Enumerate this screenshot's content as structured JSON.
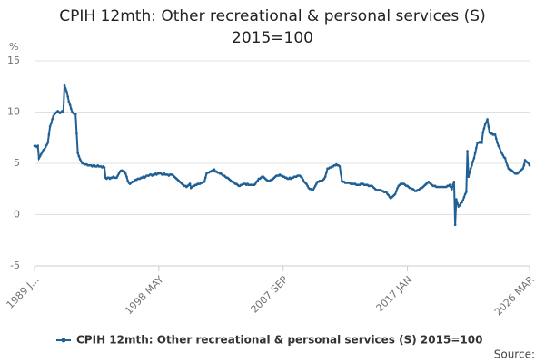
{
  "chart_data": {
    "type": "line",
    "title": "CPIH 12mth: Other recreational & personal services (S) 2015=100",
    "y_label": "%",
    "source": "Source:",
    "grid": true,
    "legend": "bottom",
    "ylim": [
      -5,
      15
    ],
    "yticks": [
      -5,
      0,
      5,
      10,
      15
    ],
    "categories": [
      "1989 J...",
      null,
      null,
      null,
      null,
      null,
      null,
      null,
      null,
      null,
      null,
      null,
      null,
      null,
      null,
      null,
      null,
      null,
      null,
      null,
      null,
      null,
      null,
      null,
      null,
      null,
      null,
      null,
      null,
      null,
      null,
      null,
      null,
      null,
      null,
      null,
      null,
      null,
      null,
      null,
      null,
      null,
      null,
      null,
      null,
      null,
      null,
      null,
      null,
      null,
      null,
      null,
      null,
      null,
      null,
      null,
      null,
      null,
      null,
      null,
      null,
      null,
      null,
      null,
      null,
      null,
      null,
      null,
      null,
      null,
      null,
      null,
      null,
      null,
      null,
      null,
      null,
      null,
      null,
      null,
      null,
      null,
      null,
      null,
      null,
      null,
      null,
      null,
      null,
      null,
      null,
      null,
      null,
      null,
      null,
      null,
      null,
      null,
      null,
      null,
      null,
      null,
      null,
      null,
      null,
      null,
      null,
      null,
      null,
      null,
      null,
      null,
      "1998 MAY",
      null,
      null,
      null,
      null,
      null,
      null,
      null,
      null,
      null,
      null,
      null,
      null,
      null,
      null,
      null,
      null,
      null,
      null,
      null,
      null,
      null,
      null,
      null,
      null,
      null,
      null,
      null,
      null,
      null,
      null,
      null,
      null,
      null,
      null,
      null,
      null,
      null,
      null,
      null,
      null,
      null,
      null,
      null,
      null,
      null,
      null,
      null,
      null,
      null,
      null,
      null,
      null,
      null,
      null,
      null,
      null,
      null,
      null,
      null,
      null,
      null,
      null,
      null,
      null,
      null,
      null,
      null,
      null,
      null,
      null,
      null,
      null,
      null,
      null,
      null,
      null,
      null,
      null,
      null,
      null,
      null,
      null,
      null,
      null,
      null,
      null,
      null,
      null,
      null,
      null,
      null,
      null,
      null,
      null,
      null,
      null,
      null,
      null,
      null,
      null,
      null,
      null,
      null,
      null,
      null,
      null,
      null,
      null,
      null,
      null,
      null,
      "2007 SEP",
      null,
      null,
      null,
      null,
      null,
      null,
      null,
      null,
      null,
      null,
      null,
      null,
      null,
      null,
      null,
      null,
      null,
      null,
      null,
      null,
      null,
      null,
      null,
      null,
      null,
      null,
      null,
      null,
      null,
      null,
      null,
      null,
      null,
      null,
      null,
      null,
      null,
      null,
      null,
      null,
      null,
      null,
      null,
      null,
      null,
      null,
      null,
      null,
      null,
      null,
      null,
      null,
      null,
      null,
      null,
      null,
      null,
      null,
      null,
      null,
      null,
      null,
      null,
      null,
      null,
      null,
      null,
      null,
      null,
      null,
      null,
      null,
      null,
      null,
      null,
      null,
      null,
      null,
      null,
      null,
      null,
      null,
      null,
      null,
      null,
      null,
      null,
      null,
      null,
      null,
      null,
      null,
      null,
      null,
      null,
      null,
      null,
      null,
      null,
      null,
      null,
      null,
      null,
      null,
      null,
      null,
      null,
      null,
      null,
      null,
      null,
      "2017 JAN",
      null,
      null,
      null,
      null,
      null,
      null,
      null,
      null,
      null,
      null,
      null,
      null,
      null,
      null,
      null,
      null,
      null,
      null,
      null,
      null,
      null,
      null,
      null,
      null,
      null,
      null,
      null,
      null,
      null,
      null,
      null,
      null,
      null,
      null,
      null,
      null,
      null,
      null,
      null,
      null,
      null,
      null,
      null,
      null,
      null,
      null,
      null,
      null,
      null,
      null,
      null,
      null,
      null,
      null,
      null,
      null,
      null,
      null,
      null,
      null,
      null,
      null,
      null,
      null,
      null,
      null,
      null,
      null,
      null,
      null,
      null,
      null,
      null,
      null,
      null,
      null,
      null,
      null,
      null,
      null,
      null,
      null,
      null,
      null,
      null,
      null,
      null,
      null,
      null,
      null,
      null,
      null,
      null,
      null,
      null,
      null,
      null,
      null,
      null,
      null,
      null,
      null,
      null,
      null,
      null,
      null,
      null,
      null,
      null,
      "2026 MAR"
    ],
    "series": [
      {
        "name": "CPIH 12mth: Other recreational & personal services (S) 2015=100",
        "color": "#206095",
        "values": [
          6.7,
          6.7,
          6.6,
          6.7,
          5.5,
          5.7,
          5.9,
          6.1,
          6.3,
          6.4,
          6.6,
          6.8,
          7.0,
          7.8,
          8.6,
          8.9,
          9.3,
          9.6,
          9.8,
          9.9,
          10.0,
          10.1,
          10.0,
          9.9,
          10.0,
          10.1,
          10.0,
          12.6,
          12.3,
          12.0,
          11.5,
          11.0,
          10.7,
          10.3,
          10.0,
          9.9,
          9.8,
          9.8,
          7.9,
          6.0,
          5.7,
          5.4,
          5.2,
          5.0,
          5.0,
          4.9,
          4.9,
          4.9,
          4.8,
          4.8,
          4.8,
          4.8,
          4.7,
          4.8,
          4.8,
          4.7,
          4.7,
          4.8,
          4.7,
          4.7,
          4.7,
          4.6,
          4.7,
          4.6,
          3.6,
          3.5,
          3.6,
          3.6,
          3.5,
          3.6,
          3.6,
          3.7,
          3.6,
          3.6,
          3.6,
          3.8,
          4.0,
          4.2,
          4.3,
          4.3,
          4.2,
          4.2,
          4.0,
          3.7,
          3.3,
          3.1,
          3.0,
          3.1,
          3.2,
          3.2,
          3.3,
          3.4,
          3.4,
          3.5,
          3.5,
          3.5,
          3.6,
          3.6,
          3.7,
          3.6,
          3.7,
          3.8,
          3.8,
          3.8,
          3.9,
          3.9,
          3.8,
          3.9,
          3.9,
          4.0,
          3.9,
          4.0,
          4.0,
          4.1,
          4.0,
          3.9,
          3.9,
          4.0,
          3.9,
          3.9,
          3.9,
          3.8,
          3.9,
          3.9,
          3.9,
          3.8,
          3.7,
          3.6,
          3.5,
          3.4,
          3.3,
          3.2,
          3.1,
          3.0,
          2.9,
          2.8,
          2.8,
          2.7,
          2.8,
          2.9,
          3.0,
          2.6,
          2.7,
          2.8,
          2.8,
          2.9,
          2.9,
          3.0,
          3.0,
          3.0,
          3.1,
          3.1,
          3.2,
          3.2,
          3.6,
          4.0,
          4.1,
          4.1,
          4.2,
          4.2,
          4.3,
          4.3,
          4.4,
          4.2,
          4.2,
          4.1,
          4.1,
          4.0,
          4.0,
          3.9,
          3.8,
          3.8,
          3.7,
          3.6,
          3.6,
          3.5,
          3.4,
          3.3,
          3.2,
          3.2,
          3.1,
          3.0,
          3.0,
          2.9,
          2.8,
          2.8,
          2.9,
          2.9,
          3.0,
          3.0,
          3.0,
          2.9,
          3.0,
          2.9,
          2.9,
          2.9,
          2.9,
          2.9,
          2.9,
          3.0,
          3.2,
          3.3,
          3.5,
          3.5,
          3.6,
          3.7,
          3.7,
          3.6,
          3.5,
          3.4,
          3.3,
          3.3,
          3.3,
          3.4,
          3.4,
          3.5,
          3.6,
          3.7,
          3.8,
          3.8,
          3.8,
          3.9,
          3.8,
          3.8,
          3.7,
          3.7,
          3.6,
          3.6,
          3.5,
          3.5,
          3.6,
          3.5,
          3.6,
          3.6,
          3.7,
          3.7,
          3.7,
          3.8,
          3.8,
          3.8,
          3.7,
          3.6,
          3.4,
          3.2,
          3.1,
          3.0,
          2.8,
          2.6,
          2.5,
          2.5,
          2.4,
          2.4,
          2.6,
          2.8,
          3.0,
          3.2,
          3.2,
          3.3,
          3.3,
          3.3,
          3.4,
          3.5,
          3.7,
          4.1,
          4.5,
          4.5,
          4.6,
          4.6,
          4.7,
          4.7,
          4.8,
          4.8,
          4.9,
          4.8,
          4.8,
          4.7,
          4.0,
          3.3,
          3.2,
          3.2,
          3.1,
          3.1,
          3.1,
          3.1,
          3.1,
          3.0,
          3.0,
          3.0,
          3.0,
          3.0,
          2.9,
          2.9,
          2.9,
          2.9,
          3.0,
          3.0,
          3.0,
          2.9,
          2.9,
          2.9,
          2.9,
          2.8,
          2.8,
          2.8,
          2.8,
          2.7,
          2.6,
          2.5,
          2.4,
          2.4,
          2.4,
          2.4,
          2.4,
          2.3,
          2.3,
          2.2,
          2.2,
          2.2,
          2.0,
          1.9,
          1.7,
          1.6,
          1.7,
          1.8,
          1.9,
          2.0,
          2.3,
          2.6,
          2.8,
          2.9,
          3.0,
          3.0,
          3.0,
          3.0,
          2.9,
          2.8,
          2.8,
          2.7,
          2.6,
          2.6,
          2.5,
          2.5,
          2.4,
          2.3,
          2.3,
          2.4,
          2.4,
          2.5,
          2.6,
          2.6,
          2.7,
          2.8,
          2.9,
          3.0,
          3.1,
          3.2,
          3.1,
          3.0,
          2.9,
          2.8,
          2.8,
          2.8,
          2.7,
          2.7,
          2.7,
          2.7,
          2.7,
          2.7,
          2.7,
          2.7,
          2.7,
          2.7,
          2.8,
          2.8,
          2.9,
          2.7,
          2.5,
          2.9,
          3.2,
          -1.0,
          1.5,
          1.1,
          0.8,
          0.9,
          1.1,
          1.2,
          1.4,
          1.7,
          2.0,
          2.2,
          6.2,
          3.7,
          4.1,
          4.5,
          4.8,
          5.2,
          5.5,
          6.0,
          6.5,
          7.0,
          7.0,
          7.1,
          7.0,
          7.0,
          8.0,
          8.4,
          8.8,
          9.0,
          9.3,
          8.6,
          8.0,
          7.9,
          7.9,
          7.8,
          7.8,
          7.8,
          7.4,
          7.0,
          6.7,
          6.5,
          6.2,
          6.0,
          5.8,
          5.6,
          5.5,
          5.1,
          4.8,
          4.5,
          4.4,
          4.4,
          4.3,
          4.2,
          4.1,
          4.0,
          4.0,
          4.0,
          4.1,
          4.2,
          4.3,
          4.4,
          4.5,
          4.8,
          5.3,
          5.2,
          5.1,
          5.0,
          4.8
        ]
      }
    ]
  }
}
